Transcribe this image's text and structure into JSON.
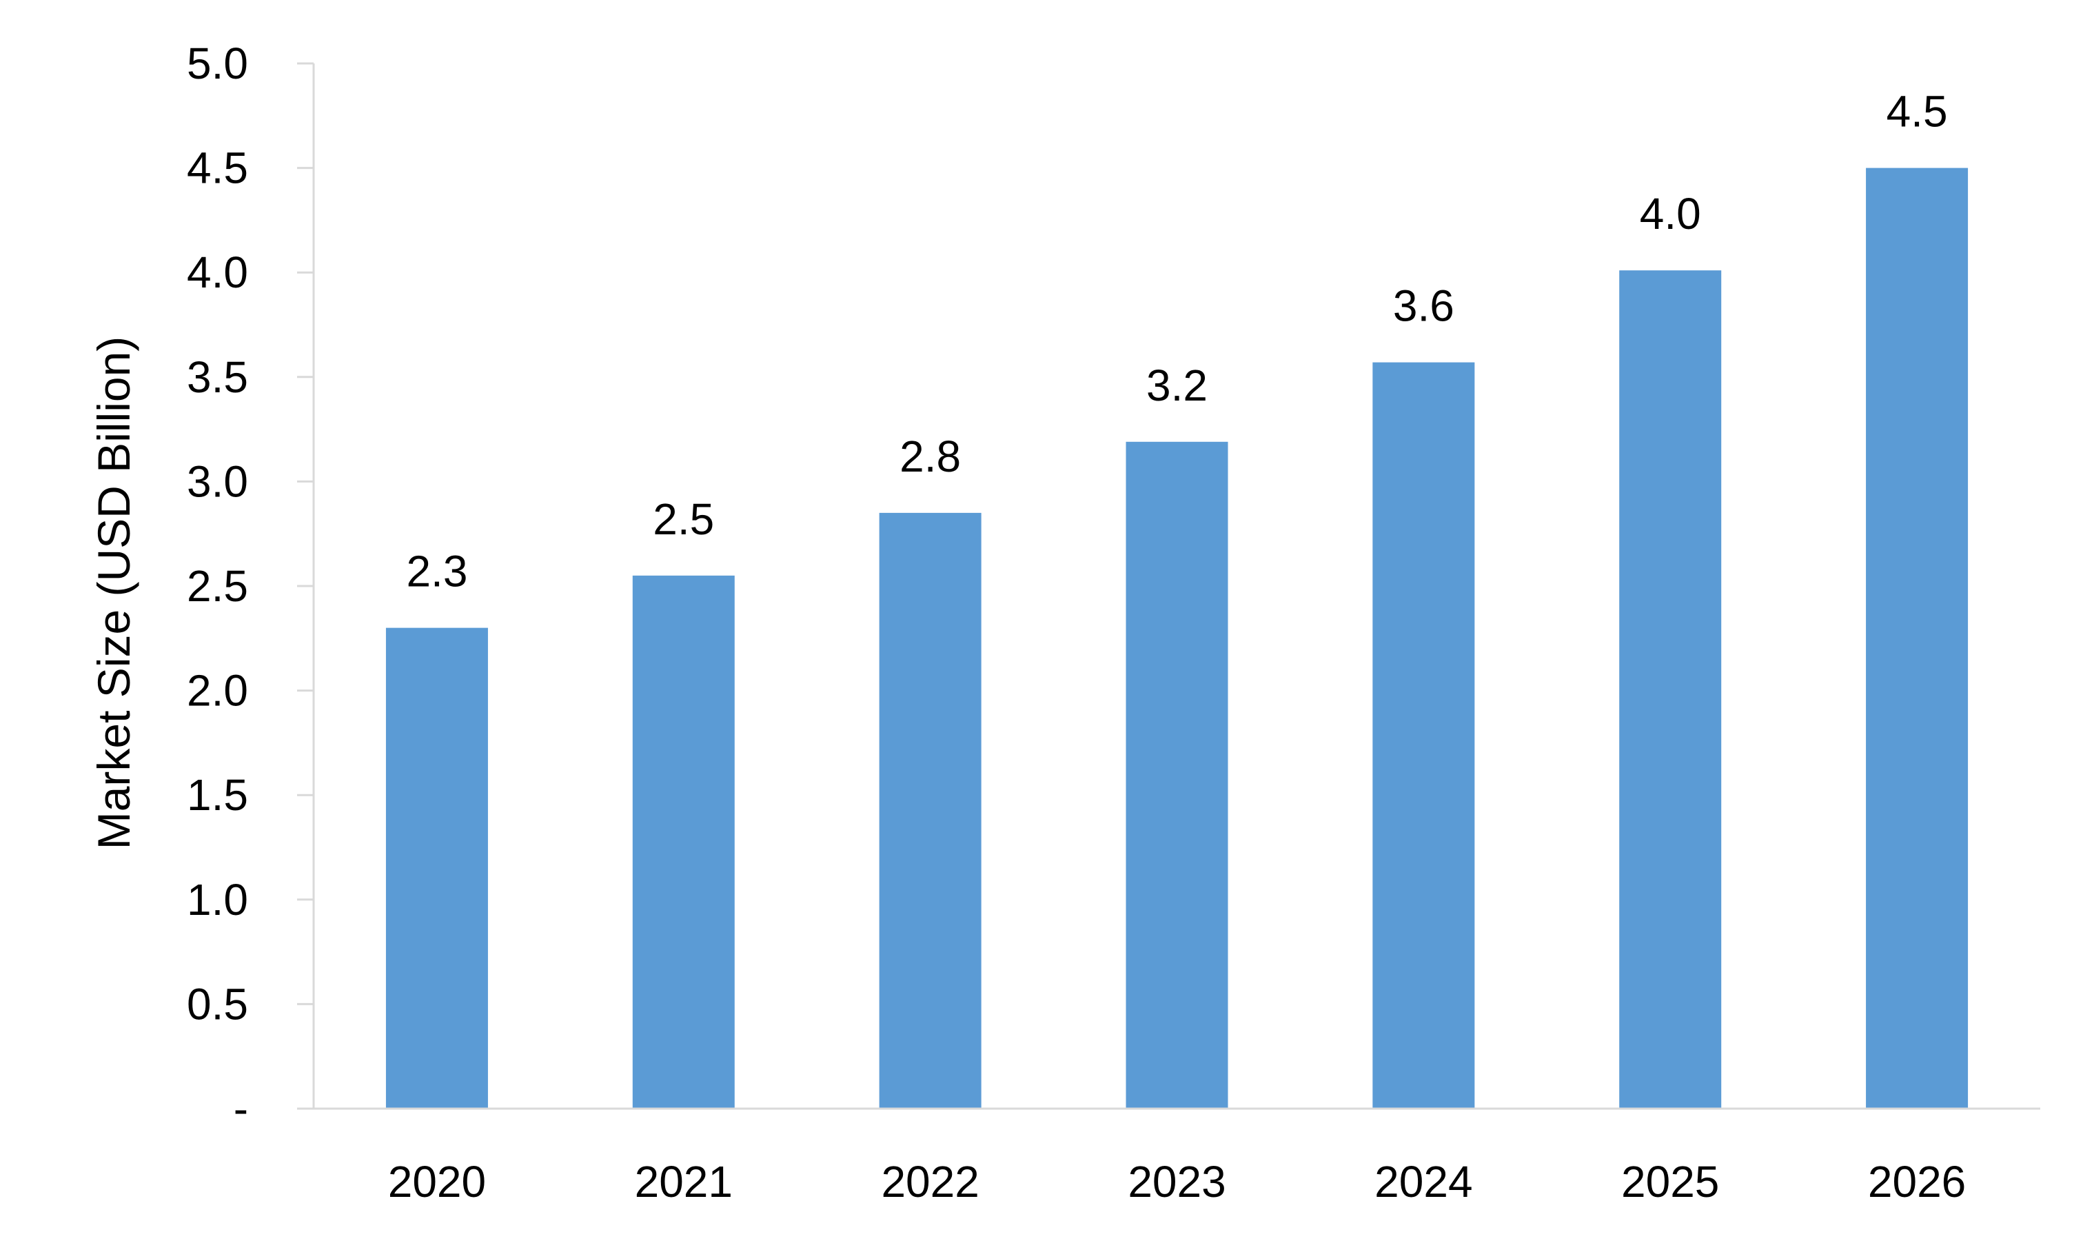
{
  "chart_data": {
    "type": "bar",
    "categories": [
      "2020",
      "2021",
      "2022",
      "2023",
      "2024",
      "2025",
      "2026"
    ],
    "values": [
      2.3,
      2.55,
      2.85,
      3.19,
      3.57,
      4.01,
      4.5
    ],
    "data_labels": [
      "2.3",
      "2.5",
      "2.8",
      "3.2",
      "3.6",
      "4.0",
      "4.5"
    ],
    "title": "",
    "xlabel": "",
    "ylabel": "Market Size (USD Billion)",
    "ylim": [
      0,
      5.0
    ],
    "yticks": [
      0,
      0.5,
      1.0,
      1.5,
      2.0,
      2.5,
      3.0,
      3.5,
      4.0,
      4.5,
      5.0
    ],
    "ytick_labels": [
      "-",
      "0.5",
      "1.0",
      "1.5",
      "2.0",
      "2.5",
      "3.0",
      "3.5",
      "4.0",
      "4.5",
      "5.0"
    ],
    "grid": false,
    "legend": "none",
    "colors": {
      "bar": "#5B9BD5",
      "axis": "#D9D9D9",
      "text": "#000000"
    }
  }
}
